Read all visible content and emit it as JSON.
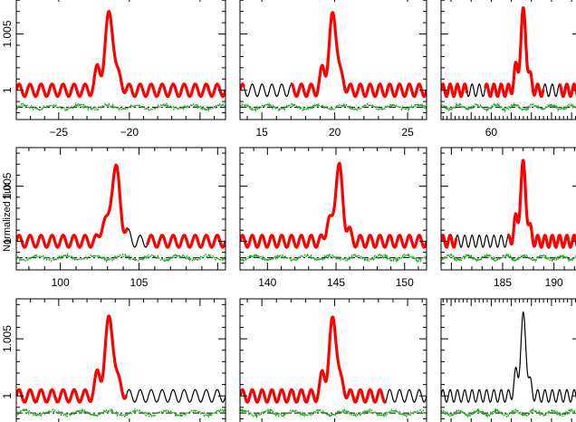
{
  "figure": {
    "ylabel": "Normalized flux"
  },
  "colors": {
    "model": "#000000",
    "fitted": "#ff0000",
    "residual": "#1fa81f",
    "zero_line": "#000000"
  },
  "chart_data": [
    {
      "type": "line",
      "row": 0,
      "col": 0,
      "xlim": [
        -28,
        -13.2
      ],
      "ylim": [
        0.9974,
        1.0085
      ],
      "xticks": [
        -25,
        -20
      ],
      "xtick_labels": [
        "−25",
        "−20"
      ],
      "yticks": [
        1.0,
        1.005
      ],
      "ytick_labels": [
        "1",
        "1.005"
      ],
      "peak_x": -21.4,
      "fit_ranges": [
        [
          -28,
          -13.2
        ]
      ],
      "series": []
    },
    {
      "type": "line",
      "row": 0,
      "col": 1,
      "xlim": [
        13.5,
        26.3
      ],
      "ylim": [
        0.9974,
        1.0085
      ],
      "xticks": [
        15,
        20,
        25
      ],
      "xtick_labels": [
        "15",
        "20",
        "25"
      ],
      "yticks": [
        1.0,
        1.005
      ],
      "ytick_labels": [
        "",
        ""
      ],
      "peak_x": 19.9,
      "fit_ranges": [
        [
          13.5,
          13.8
        ],
        [
          17.0,
          26.3
        ]
      ],
      "series": []
    },
    {
      "type": "line",
      "row": 0,
      "col": 2,
      "xlim": [
        47.5,
        82.0
      ],
      "ylim": [
        0.9974,
        1.0085
      ],
      "xticks": [
        60
      ],
      "xtick_labels": [
        "60"
      ],
      "yticks": [
        1.0,
        1.005
      ],
      "ytick_labels": [
        "",
        ""
      ],
      "peak_x": 68.0,
      "fit_ranges": [
        [
          47.5,
          54.0
        ],
        [
          58.5,
          73.0
        ],
        [
          77.0,
          82.0
        ]
      ],
      "series": []
    },
    {
      "type": "line",
      "row": 1,
      "col": 0,
      "xlim": [
        97.2,
        110.5
      ],
      "ylim": [
        0.9974,
        1.0085
      ],
      "xticks": [
        100,
        105
      ],
      "xtick_labels": [
        "100",
        "105"
      ],
      "yticks": [
        1.0,
        1.005
      ],
      "ytick_labels": [
        "1",
        "1.005"
      ],
      "peak_x": 103.5,
      "fit_ranges": [
        [
          97.2,
          104.3
        ],
        [
          105.5,
          110.5
        ]
      ],
      "series": []
    },
    {
      "type": "line",
      "row": 1,
      "col": 1,
      "xlim": [
        138.0,
        151.6
      ],
      "ylim": [
        0.9974,
        1.0085
      ],
      "xticks": [
        140,
        145,
        150
      ],
      "xtick_labels": [
        "140",
        "145",
        "150"
      ],
      "yticks": [
        1.0,
        1.005
      ],
      "ytick_labels": [
        "",
        ""
      ],
      "peak_x": 145.2,
      "fit_ranges": [
        [
          138.0,
          151.6
        ]
      ],
      "series": []
    },
    {
      "type": "line",
      "row": 1,
      "col": 2,
      "xlim": [
        179.0,
        192.5
      ],
      "ylim": [
        0.9974,
        1.0085
      ],
      "xticks": [
        185,
        190
      ],
      "xtick_labels": [
        "185",
        "190"
      ],
      "yticks": [
        1.0,
        1.005
      ],
      "ytick_labels": [
        "",
        ""
      ],
      "peak_x": 187.0,
      "fit_ranges": [
        [
          179.0,
          180.5
        ],
        [
          185.5,
          192.5
        ]
      ],
      "series": []
    },
    {
      "type": "line",
      "row": 2,
      "col": 0,
      "xlim": [
        -28,
        -13.2
      ],
      "ylim": [
        0.9974,
        1.0085
      ],
      "xticks": [],
      "xtick_labels": [],
      "yticks": [
        1.0,
        1.005
      ],
      "ytick_labels": [
        "1",
        "1.005"
      ],
      "peak_x": -21.4,
      "fit_ranges": [
        [
          -28,
          -20.2
        ]
      ],
      "series": []
    },
    {
      "type": "line",
      "row": 2,
      "col": 1,
      "xlim": [
        13.5,
        26.3
      ],
      "ylim": [
        0.9974,
        1.0085
      ],
      "xticks": [],
      "xtick_labels": [],
      "yticks": [
        1.0,
        1.005
      ],
      "ytick_labels": [
        "",
        ""
      ],
      "peak_x": 19.9,
      "fit_ranges": [
        [
          13.5,
          23.5
        ]
      ],
      "series": []
    },
    {
      "type": "line",
      "row": 2,
      "col": 2,
      "xlim": [
        47.5,
        82.0
      ],
      "ylim": [
        0.9974,
        1.0085
      ],
      "xticks": [],
      "xtick_labels": [],
      "yticks": [
        1.0,
        1.005
      ],
      "ytick_labels": [
        "",
        ""
      ],
      "peak_x": 68.0,
      "fit_ranges": [],
      "series": []
    }
  ]
}
